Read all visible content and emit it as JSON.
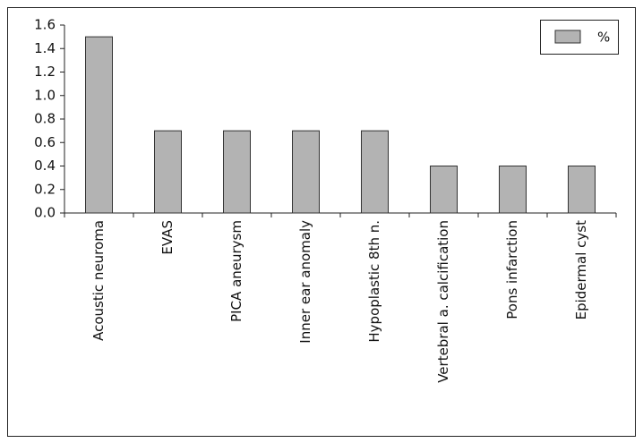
{
  "chart_data": {
    "type": "bar",
    "categories": [
      "Acoustic neuroma",
      "EVAS",
      "PICA aneurysm",
      "Inner ear anomaly",
      "Hypoplastic 8th n.",
      "Vertebral a. calcification",
      "Pons infarction",
      "Epidermal cyst"
    ],
    "series": [
      {
        "name": "%",
        "color": "#b3b3b3",
        "values": [
          1.5,
          0.7,
          0.7,
          0.7,
          0.7,
          0.4,
          0.4,
          0.4
        ]
      }
    ],
    "ylim": [
      0,
      1.6
    ],
    "yticks": [
      {
        "value": 0,
        "label": "0.0"
      },
      0.2,
      0.4,
      0.6,
      0.8,
      {
        "value": 1,
        "label": "1.0"
      },
      1.2,
      1.4,
      1.6
    ],
    "legend": "top-right"
  }
}
